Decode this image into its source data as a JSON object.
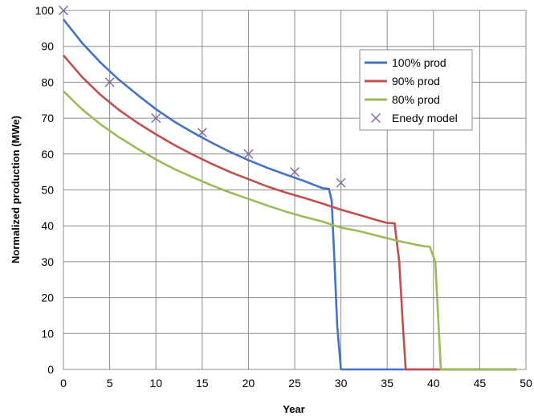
{
  "chart_data": {
    "type": "line",
    "title": "",
    "xlabel": "Year",
    "ylabel": "Normalized production (MWe)",
    "xlim": [
      0,
      50
    ],
    "ylim": [
      0,
      100
    ],
    "x_ticks": [
      0,
      5,
      10,
      15,
      20,
      25,
      30,
      35,
      40,
      45,
      50
    ],
    "y_ticks": [
      0,
      10,
      20,
      30,
      40,
      50,
      60,
      70,
      80,
      90,
      100
    ],
    "grid": true,
    "legend_position": "top-right",
    "series": [
      {
        "name": "100% prod",
        "kind": "line",
        "color": "#4472c4",
        "points": [
          [
            0,
            97.5
          ],
          [
            2,
            91
          ],
          [
            4,
            85.5
          ],
          [
            6,
            80.7
          ],
          [
            8,
            76.5
          ],
          [
            10,
            72.5
          ],
          [
            12,
            69
          ],
          [
            14,
            66
          ],
          [
            16,
            63.2
          ],
          [
            18,
            60.6
          ],
          [
            20,
            58.3
          ],
          [
            22,
            56.2
          ],
          [
            24,
            54.3
          ],
          [
            26,
            52.5
          ],
          [
            27,
            51.5
          ],
          [
            28,
            50.5
          ],
          [
            28.7,
            50.3
          ],
          [
            29,
            47
          ],
          [
            29.3,
            30
          ],
          [
            29.6,
            12
          ],
          [
            30,
            0
          ],
          [
            49,
            0
          ]
        ]
      },
      {
        "name": "90% prod",
        "kind": "line",
        "color": "#c0504d",
        "points": [
          [
            0,
            87.5
          ],
          [
            2,
            81.5
          ],
          [
            4,
            76.5
          ],
          [
            6,
            72.3
          ],
          [
            8,
            68.7
          ],
          [
            10,
            65.5
          ],
          [
            12,
            62.5
          ],
          [
            14,
            59.8
          ],
          [
            16,
            57.3
          ],
          [
            18,
            55
          ],
          [
            20,
            53
          ],
          [
            22,
            51
          ],
          [
            24,
            49.3
          ],
          [
            26,
            47.8
          ],
          [
            28,
            46.2
          ],
          [
            30,
            44.5
          ],
          [
            32,
            43
          ],
          [
            34,
            41.5
          ],
          [
            35,
            40.8
          ],
          [
            35.8,
            40.7
          ],
          [
            36.3,
            30
          ],
          [
            36.7,
            12
          ],
          [
            37,
            0
          ],
          [
            49,
            0
          ]
        ]
      },
      {
        "name": "80% prod",
        "kind": "line",
        "color": "#9bbb59",
        "points": [
          [
            0,
            77.5
          ],
          [
            2,
            72.5
          ],
          [
            4,
            68.3
          ],
          [
            6,
            64.7
          ],
          [
            8,
            61.5
          ],
          [
            10,
            58.5
          ],
          [
            12,
            55.8
          ],
          [
            14,
            53.5
          ],
          [
            16,
            51.3
          ],
          [
            18,
            49.3
          ],
          [
            20,
            47.5
          ],
          [
            22,
            45.7
          ],
          [
            24,
            44
          ],
          [
            26,
            42.5
          ],
          [
            28,
            41.2
          ],
          [
            30,
            39.5
          ],
          [
            32,
            38.5
          ],
          [
            34,
            37.2
          ],
          [
            36,
            35.9
          ],
          [
            38,
            34.8
          ],
          [
            39,
            34.3
          ],
          [
            39.6,
            34.2
          ],
          [
            40.2,
            30
          ],
          [
            40.5,
            15
          ],
          [
            40.8,
            0
          ],
          [
            49,
            0
          ]
        ]
      },
      {
        "name": "Enedy model",
        "kind": "marker",
        "color": "#8064a2",
        "points": [
          [
            0,
            100
          ],
          [
            5,
            80
          ],
          [
            10,
            70
          ],
          [
            15,
            66
          ],
          [
            20,
            60
          ],
          [
            25,
            55
          ],
          [
            30,
            52
          ]
        ]
      }
    ]
  }
}
